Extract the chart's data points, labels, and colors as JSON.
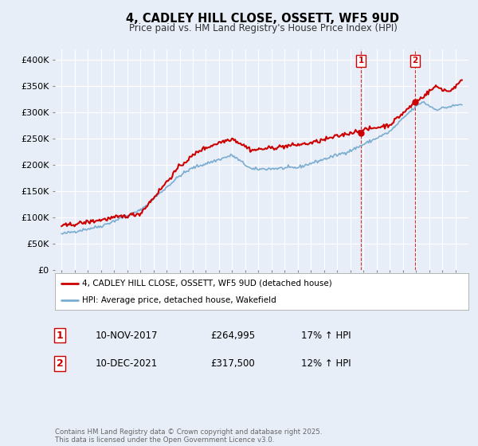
{
  "title": "4, CADLEY HILL CLOSE, OSSETT, WF5 9UD",
  "subtitle": "Price paid vs. HM Land Registry's House Price Index (HPI)",
  "ylim": [
    0,
    420000
  ],
  "yticks": [
    0,
    50000,
    100000,
    150000,
    200000,
    250000,
    300000,
    350000,
    400000
  ],
  "ytick_labels": [
    "£0",
    "£50K",
    "£100K",
    "£150K",
    "£200K",
    "£250K",
    "£300K",
    "£350K",
    "£400K"
  ],
  "red_color": "#cc0000",
  "blue_color": "#7aadcf",
  "legend_line1": "4, CADLEY HILL CLOSE, OSSETT, WF5 9UD (detached house)",
  "legend_line2": "HPI: Average price, detached house, Wakefield",
  "sale1_label": "1",
  "sale1_date": "10-NOV-2017",
  "sale1_price": "£264,995",
  "sale1_hpi": "17% ↑ HPI",
  "sale2_label": "2",
  "sale2_date": "10-DEC-2021",
  "sale2_price": "£317,500",
  "sale2_hpi": "12% ↑ HPI",
  "footer": "Contains HM Land Registry data © Crown copyright and database right 2025.\nThis data is licensed under the Open Government Licence v3.0.",
  "background_color": "#e8eef8"
}
